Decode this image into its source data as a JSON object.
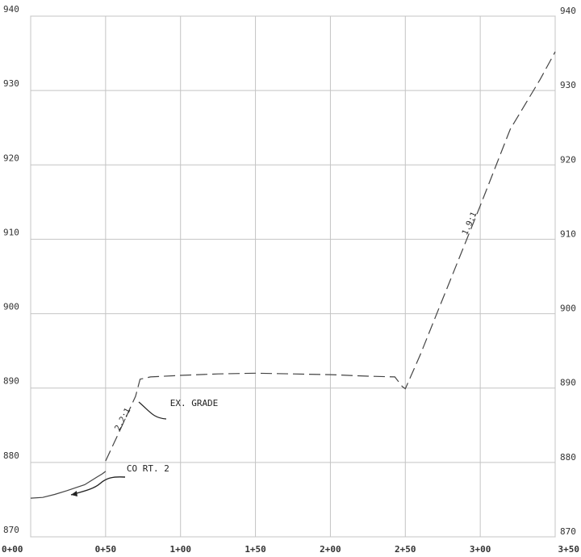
{
  "chart_data": {
    "type": "line",
    "xlim": [
      0,
      350
    ],
    "ylim": [
      870,
      940
    ],
    "grid": true,
    "x_ticks": [
      0,
      50,
      100,
      150,
      200,
      250,
      300,
      350
    ],
    "x_tick_labels": [
      "0+00",
      "0+50",
      "1+00",
      "1+50",
      "2+00",
      "2+50",
      "3+00",
      "3+50"
    ],
    "y_ticks": [
      870,
      880,
      890,
      900,
      910,
      920,
      930,
      940
    ],
    "y_tick_labels": [
      "870",
      "880",
      "890",
      "900",
      "910",
      "920",
      "930",
      "940"
    ],
    "series": [
      {
        "style": "solid",
        "x": [
          0,
          8,
          16,
          24,
          30,
          36,
          40,
          44,
          48,
          50
        ],
        "y": [
          875.2,
          875.3,
          875.7,
          876.2,
          876.6,
          877.0,
          877.5,
          878.0,
          878.5,
          878.8
        ]
      },
      {
        "style": "dashed",
        "x": [
          50,
          60,
          70,
          73,
          80,
          100,
          125,
          150,
          175,
          200,
          225,
          243,
          248,
          250,
          260,
          270,
          280,
          290,
          300,
          320,
          340,
          350
        ],
        "y": [
          880.2,
          884.5,
          888.9,
          891.2,
          891.5,
          891.7,
          891.9,
          892.0,
          891.9,
          891.8,
          891.6,
          891.5,
          890.2,
          889.9,
          894.5,
          899.5,
          904.5,
          909.5,
          914.5,
          924.8,
          931.5,
          935.2
        ]
      }
    ],
    "annotations": [
      {
        "text": "EX. GRADE",
        "x": 93,
        "y": 887.6
      },
      {
        "text": "CO RT. 2",
        "x": 64,
        "y": 878.8
      },
      {
        "text": "2.2:1",
        "x": 59,
        "y": 884.2,
        "rotation": -62
      },
      {
        "text": "1.9:1",
        "x": 291,
        "y": 910.5,
        "rotation": -66
      }
    ]
  }
}
